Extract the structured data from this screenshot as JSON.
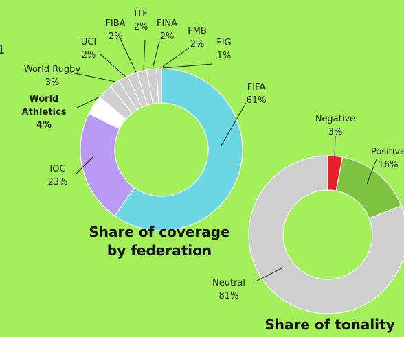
{
  "annotation": "1",
  "chart_data": [
    {
      "type": "donut",
      "title": "Share of coverage by federation",
      "categories": [
        "FIFA",
        "IOC",
        "World Athletics",
        "World Rugby",
        "UCI",
        "FIBA",
        "ITF",
        "FINA",
        "FMB",
        "FIG"
      ],
      "values": [
        61,
        23,
        4,
        3,
        2,
        2,
        2,
        2,
        2,
        1
      ],
      "value_labels": [
        "61%",
        "23%",
        "4%",
        "3%",
        "2%",
        "2%",
        "2%",
        "2%",
        "2%",
        "1%"
      ],
      "colors": [
        "#6ad7e2",
        "#b99bf6",
        "#ffffff",
        "#cfcfcf",
        "#cfcfcf",
        "#cfcfcf",
        "#cfcfcf",
        "#cfcfcf",
        "#cfcfcf",
        "#cfcfcf"
      ]
    },
    {
      "type": "donut",
      "title": "Share of tonality",
      "categories": [
        "Negative",
        "Positive",
        "Neutral"
      ],
      "values": [
        3,
        16,
        81
      ],
      "value_labels": [
        "3%",
        "16%",
        "81%"
      ],
      "colors": [
        "#e8202a",
        "#7cc440",
        "#cfcfcf"
      ]
    }
  ]
}
